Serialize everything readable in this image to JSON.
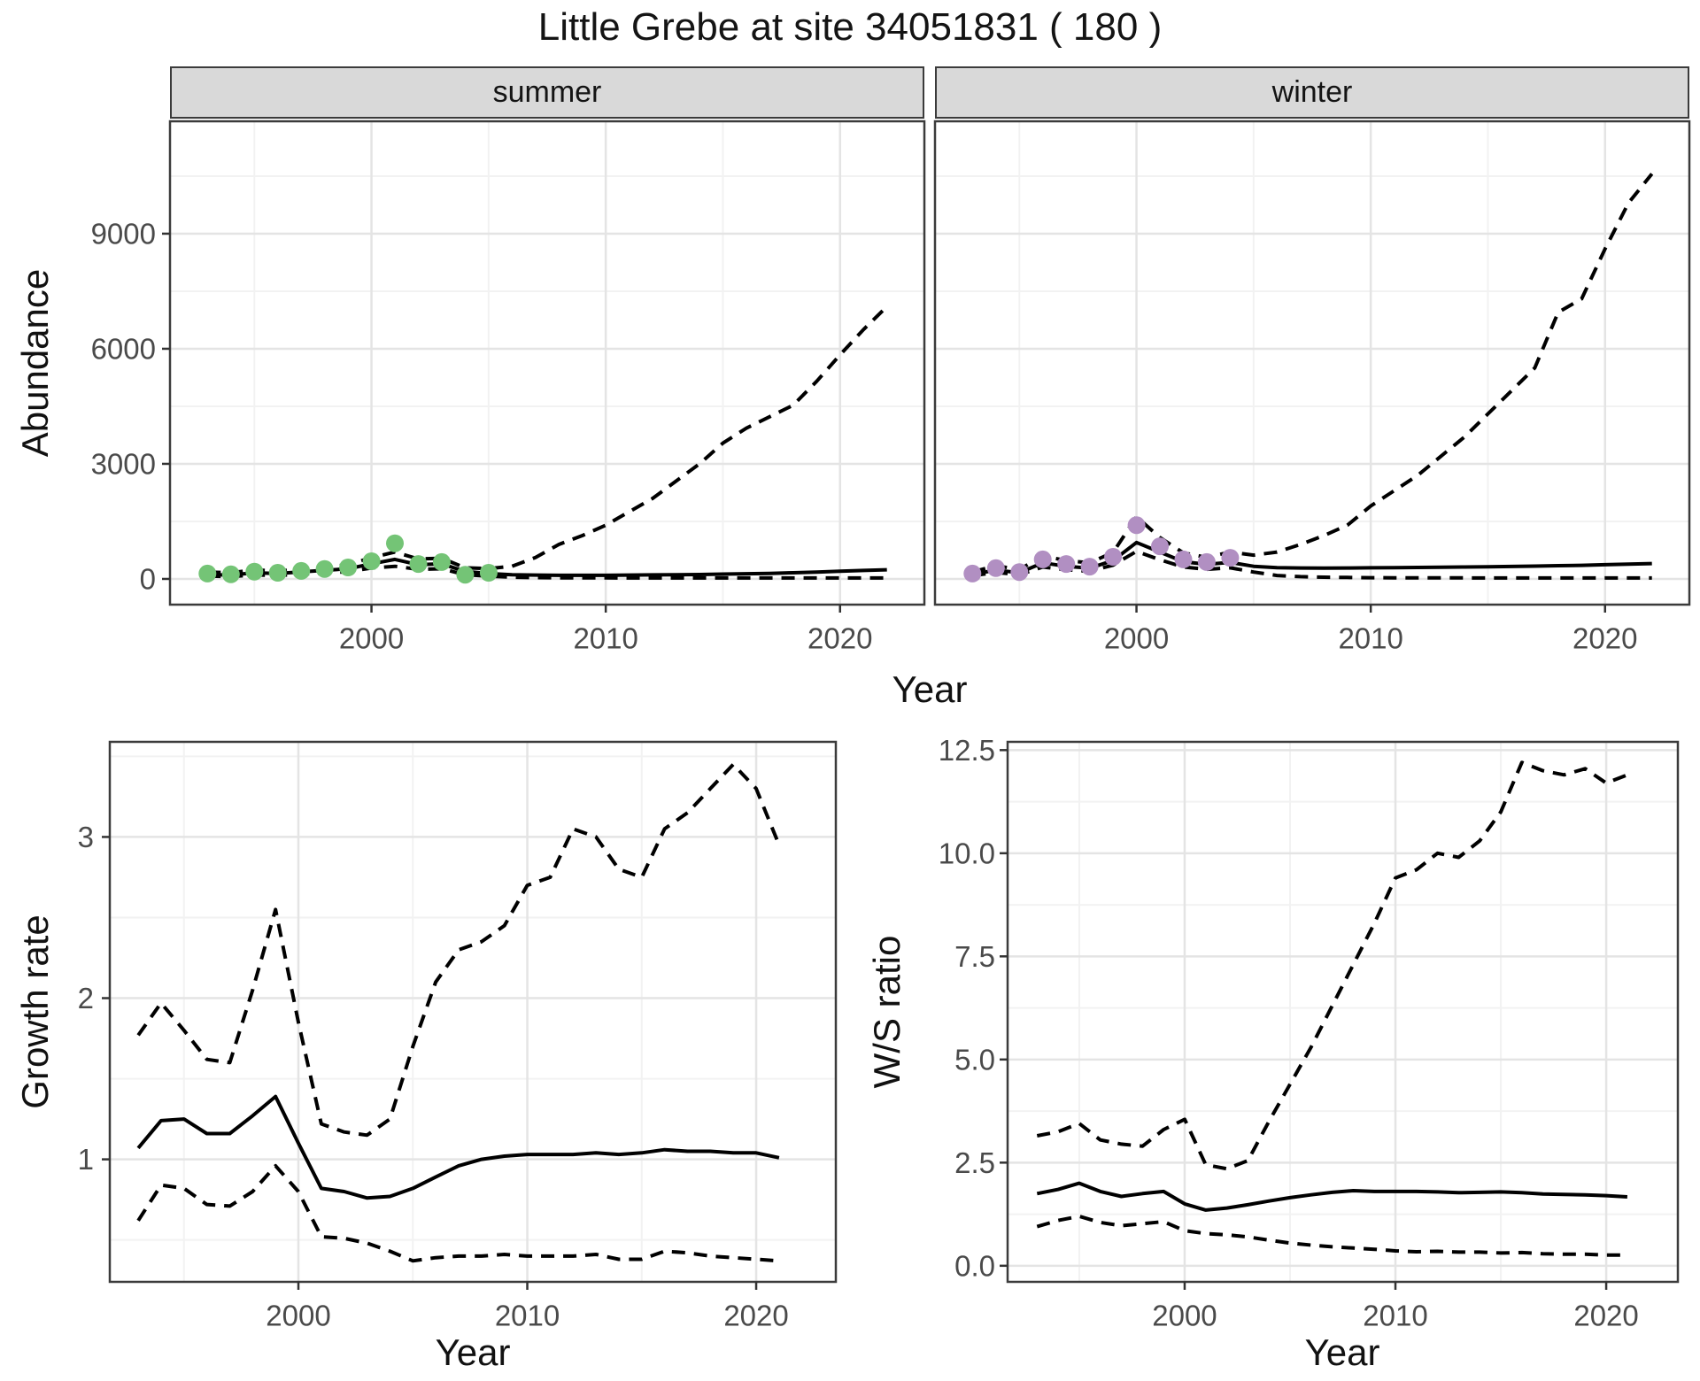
{
  "title": "Little Grebe at site 34051831 ( 180 )",
  "labels": {
    "abundance_y": "Abundance",
    "growth_y": "Growth rate",
    "ws_y": "W/S ratio",
    "year_x_top": "Year",
    "year_x_growth": "Year",
    "year_x_ws": "Year",
    "strip_summer": "summer",
    "strip_winter": "winter"
  },
  "colors": {
    "summer_point": "#74c476",
    "winter_point": "#b18fc2",
    "line": "#000000",
    "grid_major": "#e4e4e4",
    "grid_minor": "#f2f2f2",
    "panel_border": "#3b3b3b",
    "tick_mark": "#333333",
    "tick_text": "#4a4a4a",
    "strip_bg": "#d9d9d9",
    "title_text": "#141414"
  },
  "chart_data": [
    {
      "id": "summer",
      "type": "line",
      "facet": "summer",
      "xlabel": "Year",
      "ylabel": "Abundance",
      "xlim": [
        1991.4,
        2023.6
      ],
      "ylim": [
        -670,
        11930
      ],
      "x_ticks": [
        2000,
        2010,
        2020
      ],
      "x_tick_labels": [
        "2000",
        "2010",
        "2020"
      ],
      "x_minor": [
        1995,
        2005,
        2015
      ],
      "y_ticks": [
        0,
        3000,
        6000,
        9000
      ],
      "y_tick_labels": [
        "0",
        "3000",
        "6000",
        "9000"
      ],
      "y_minor": [
        1500,
        4500,
        7500,
        10500
      ],
      "show_y_axis": true,
      "grid": true,
      "legend": "none",
      "series": [
        {
          "name": "lower-ci",
          "style": "dashed",
          "x": [
            1993,
            1994,
            1995,
            1996,
            1997,
            1998,
            1999,
            2000,
            2001,
            2002,
            2003,
            2004,
            2005,
            2006,
            2007,
            2008,
            2009,
            2010,
            2011,
            2012,
            2013,
            2014,
            2015,
            2016,
            2017,
            2018,
            2019,
            2020,
            2021,
            2022
          ],
          "y": [
            75,
            60,
            105,
            90,
            125,
            155,
            190,
            285,
            330,
            250,
            265,
            110,
            70,
            45,
            35,
            30,
            28,
            26,
            25,
            25,
            25,
            25,
            25,
            25,
            25,
            25,
            25,
            25,
            25,
            25
          ]
        },
        {
          "name": "median",
          "style": "solid",
          "x": [
            1993,
            1994,
            1995,
            1996,
            1997,
            1998,
            1999,
            2000,
            2001,
            2002,
            2003,
            2004,
            2005,
            2006,
            2007,
            2008,
            2009,
            2010,
            2011,
            2012,
            2013,
            2014,
            2015,
            2016,
            2017,
            2018,
            2019,
            2020,
            2021,
            2022
          ],
          "y": [
            115,
            100,
            160,
            140,
            185,
            225,
            265,
            395,
            510,
            370,
            395,
            195,
            140,
            110,
            100,
            95,
            95,
            95,
            100,
            105,
            110,
            115,
            125,
            135,
            145,
            160,
            180,
            200,
            220,
            240
          ]
        },
        {
          "name": "upper-ci",
          "style": "dashed",
          "x": [
            1993,
            1994,
            1995,
            1996,
            1997,
            1998,
            1999,
            2000,
            2001,
            2002,
            2003,
            2004,
            2005,
            2006,
            2007,
            2008,
            2009,
            2010,
            2011,
            2012,
            2013,
            2014,
            2015,
            2016,
            2017,
            2018,
            2019,
            2020,
            2021,
            2022
          ],
          "y": [
            180,
            160,
            235,
            205,
            255,
            310,
            370,
            555,
            700,
            520,
            540,
            290,
            270,
            330,
            560,
            900,
            1130,
            1400,
            1750,
            2100,
            2550,
            3000,
            3540,
            3930,
            4230,
            4530,
            5150,
            5840,
            6500,
            7100
          ]
        }
      ],
      "points": {
        "color_key": "summer_point",
        "x": [
          1993,
          1994,
          1995,
          1996,
          1997,
          1998,
          1999,
          2000,
          2001,
          2002,
          2003,
          2004,
          2005
        ],
        "y": [
          140,
          120,
          190,
          160,
          210,
          260,
          300,
          460,
          930,
          390,
          440,
          110,
          160
        ]
      }
    },
    {
      "id": "winter",
      "type": "line",
      "facet": "winter",
      "xlabel": "Year",
      "ylabel": "Abundance",
      "xlim": [
        1991.4,
        2023.6
      ],
      "ylim": [
        -670,
        11930
      ],
      "x_ticks": [
        2000,
        2010,
        2020
      ],
      "x_tick_labels": [
        "2000",
        "2010",
        "2020"
      ],
      "x_minor": [
        1995,
        2005,
        2015
      ],
      "y_ticks": [
        0,
        3000,
        6000,
        9000
      ],
      "y_tick_labels": [
        "0",
        "3000",
        "6000",
        "9000"
      ],
      "y_minor": [
        1500,
        4500,
        7500,
        10500
      ],
      "show_y_axis": false,
      "grid": true,
      "legend": "none",
      "series": [
        {
          "name": "lower-ci",
          "style": "dashed",
          "x": [
            1993,
            1994,
            1995,
            1996,
            1997,
            1998,
            1999,
            2000,
            2001,
            2002,
            2003,
            2004,
            2005,
            2006,
            2007,
            2008,
            2009,
            2010,
            2011,
            2012,
            2013,
            2014,
            2015,
            2016,
            2017,
            2018,
            2019,
            2020,
            2021,
            2022
          ],
          "y": [
            85,
            170,
            110,
            310,
            240,
            200,
            360,
            720,
            500,
            310,
            250,
            290,
            180,
            90,
            60,
            45,
            38,
            32,
            30,
            28,
            27,
            26,
            25,
            25,
            25,
            25,
            25,
            25,
            25,
            25
          ]
        },
        {
          "name": "median",
          "style": "solid",
          "x": [
            1993,
            1994,
            1995,
            1996,
            1997,
            1998,
            1999,
            2000,
            2001,
            2002,
            2003,
            2004,
            2005,
            2006,
            2007,
            2008,
            2009,
            2010,
            2011,
            2012,
            2013,
            2014,
            2015,
            2016,
            2017,
            2018,
            2019,
            2020,
            2021,
            2022
          ],
          "y": [
            120,
            230,
            160,
            420,
            330,
            280,
            480,
            950,
            700,
            450,
            380,
            430,
            330,
            295,
            285,
            280,
            285,
            290,
            295,
            300,
            305,
            310,
            318,
            325,
            335,
            345,
            355,
            370,
            385,
            400
          ]
        },
        {
          "name": "upper-ci",
          "style": "dashed",
          "x": [
            1993,
            1994,
            1995,
            1996,
            1997,
            1998,
            1999,
            2000,
            2001,
            2002,
            2003,
            2004,
            2005,
            2006,
            2007,
            2008,
            2009,
            2010,
            2011,
            2012,
            2013,
            2014,
            2015,
            2016,
            2017,
            2018,
            2019,
            2020,
            2021,
            2022
          ],
          "y": [
            185,
            345,
            245,
            600,
            480,
            420,
            690,
            1620,
            1080,
            680,
            560,
            700,
            620,
            700,
            900,
            1130,
            1400,
            1900,
            2300,
            2700,
            3200,
            3700,
            4300,
            4900,
            5500,
            6950,
            7300,
            8600,
            9800,
            10560
          ]
        }
      ],
      "points": {
        "color_key": "winter_point",
        "x": [
          1993,
          1994,
          1995,
          1996,
          1997,
          1998,
          1999,
          2000,
          2001,
          2002,
          2003,
          2004
        ],
        "y": [
          140,
          280,
          180,
          510,
          390,
          320,
          575,
          1400,
          850,
          510,
          440,
          550
        ]
      }
    },
    {
      "id": "growth",
      "type": "line",
      "facet": null,
      "xlabel": "Year",
      "ylabel": "Growth rate",
      "xlim": [
        1991.76,
        2023.48
      ],
      "ylim": [
        0.24,
        3.59
      ],
      "x_ticks": [
        2000,
        2010,
        2020
      ],
      "x_tick_labels": [
        "2000",
        "2010",
        "2020"
      ],
      "x_minor": [
        1995,
        2005,
        2015
      ],
      "y_ticks": [
        1,
        2,
        3
      ],
      "y_tick_labels": [
        "1",
        "2",
        "3"
      ],
      "y_minor": [
        0.5,
        1.5,
        2.5,
        3.5
      ],
      "show_y_axis": true,
      "grid": true,
      "legend": "none",
      "series": [
        {
          "name": "lower-ci",
          "style": "dashed",
          "x": [
            1993,
            1994,
            1995,
            1996,
            1997,
            1998,
            1999,
            2000,
            2001,
            2002,
            2003,
            2004,
            2005,
            2006,
            2007,
            2008,
            2009,
            2010,
            2011,
            2012,
            2013,
            2014,
            2015,
            2016,
            2017,
            2018,
            2019,
            2020,
            2021
          ],
          "y": [
            0.62,
            0.84,
            0.82,
            0.72,
            0.71,
            0.8,
            0.96,
            0.8,
            0.52,
            0.51,
            0.48,
            0.43,
            0.37,
            0.39,
            0.4,
            0.4,
            0.41,
            0.4,
            0.4,
            0.4,
            0.41,
            0.38,
            0.38,
            0.43,
            0.42,
            0.4,
            0.39,
            0.38,
            0.37
          ]
        },
        {
          "name": "median",
          "style": "solid",
          "x": [
            1993,
            1994,
            1995,
            1996,
            1997,
            1998,
            1999,
            2000,
            2001,
            2002,
            2003,
            2004,
            2005,
            2006,
            2007,
            2008,
            2009,
            2010,
            2011,
            2012,
            2013,
            2014,
            2015,
            2016,
            2017,
            2018,
            2019,
            2020,
            2021
          ],
          "y": [
            1.07,
            1.24,
            1.25,
            1.16,
            1.16,
            1.27,
            1.39,
            1.1,
            0.82,
            0.8,
            0.76,
            0.77,
            0.82,
            0.89,
            0.96,
            1.0,
            1.02,
            1.03,
            1.03,
            1.03,
            1.04,
            1.03,
            1.04,
            1.06,
            1.05,
            1.05,
            1.04,
            1.04,
            1.01
          ]
        },
        {
          "name": "upper-ci",
          "style": "dashed",
          "x": [
            1993,
            1994,
            1995,
            1996,
            1997,
            1998,
            1999,
            2000,
            2001,
            2002,
            2003,
            2004,
            2005,
            2006,
            2007,
            2008,
            2009,
            2010,
            2011,
            2012,
            2013,
            2014,
            2015,
            2016,
            2017,
            2018,
            2019,
            2020,
            2021
          ],
          "y": [
            1.77,
            1.97,
            1.8,
            1.62,
            1.6,
            2.05,
            2.55,
            1.85,
            1.22,
            1.17,
            1.15,
            1.25,
            1.7,
            2.1,
            2.3,
            2.35,
            2.45,
            2.7,
            2.75,
            3.05,
            3.0,
            2.8,
            2.75,
            3.05,
            3.15,
            3.3,
            3.45,
            3.3,
            2.95
          ]
        }
      ],
      "points": null
    },
    {
      "id": "ws",
      "type": "line",
      "facet": null,
      "xlabel": "Year",
      "ylabel": "W/S ratio",
      "xlim": [
        1991.6,
        2023.4
      ],
      "ylim": [
        -0.39,
        12.7
      ],
      "x_ticks": [
        2000,
        2010,
        2020
      ],
      "x_tick_labels": [
        "2000",
        "2010",
        "2020"
      ],
      "x_minor": [
        1995,
        2005,
        2015
      ],
      "y_ticks": [
        0,
        2.5,
        5,
        7.5,
        10,
        12.5
      ],
      "y_tick_labels": [
        "0.0",
        "2.5",
        "5.0",
        "7.5",
        "10.0",
        "12.5"
      ],
      "y_minor": [
        1.25,
        3.75,
        6.25,
        8.75,
        11.25
      ],
      "show_y_axis": true,
      "grid": true,
      "legend": "none",
      "series": [
        {
          "name": "lower-ci",
          "style": "dashed",
          "x": [
            1993,
            1994,
            1995,
            1996,
            1997,
            1998,
            1999,
            2000,
            2001,
            2002,
            2003,
            2004,
            2005,
            2006,
            2007,
            2008,
            2009,
            2010,
            2011,
            2012,
            2013,
            2014,
            2015,
            2016,
            2017,
            2018,
            2019,
            2020,
            2021
          ],
          "y": [
            0.95,
            1.1,
            1.2,
            1.05,
            0.97,
            1.02,
            1.07,
            0.85,
            0.78,
            0.75,
            0.7,
            0.62,
            0.55,
            0.5,
            0.46,
            0.43,
            0.4,
            0.36,
            0.34,
            0.35,
            0.33,
            0.33,
            0.31,
            0.32,
            0.29,
            0.28,
            0.28,
            0.26,
            0.26
          ]
        },
        {
          "name": "median",
          "style": "solid",
          "x": [
            1993,
            1994,
            1995,
            1996,
            1997,
            1998,
            1999,
            2000,
            2001,
            2002,
            2003,
            2004,
            2005,
            2006,
            2007,
            2008,
            2009,
            2010,
            2011,
            2012,
            2013,
            2014,
            2015,
            2016,
            2017,
            2018,
            2019,
            2020,
            2021
          ],
          "y": [
            1.75,
            1.85,
            2.0,
            1.8,
            1.68,
            1.75,
            1.8,
            1.5,
            1.35,
            1.4,
            1.48,
            1.57,
            1.65,
            1.72,
            1.78,
            1.82,
            1.8,
            1.8,
            1.8,
            1.79,
            1.77,
            1.78,
            1.79,
            1.77,
            1.74,
            1.73,
            1.72,
            1.7,
            1.67
          ]
        },
        {
          "name": "upper-ci",
          "style": "dashed",
          "x": [
            1993,
            1994,
            1995,
            1996,
            1997,
            1998,
            1999,
            2000,
            2001,
            2002,
            2003,
            2004,
            2005,
            2006,
            2007,
            2008,
            2009,
            2010,
            2011,
            2012,
            2013,
            2014,
            2015,
            2016,
            2017,
            2018,
            2019,
            2020,
            2021
          ],
          "y": [
            3.15,
            3.25,
            3.45,
            3.05,
            2.95,
            2.9,
            3.3,
            3.55,
            2.45,
            2.35,
            2.55,
            3.5,
            4.4,
            5.3,
            6.3,
            7.3,
            8.3,
            9.4,
            9.6,
            10.0,
            9.9,
            10.3,
            11.0,
            12.2,
            12.0,
            11.9,
            12.05,
            11.7,
            11.9
          ]
        }
      ],
      "points": null
    }
  ]
}
